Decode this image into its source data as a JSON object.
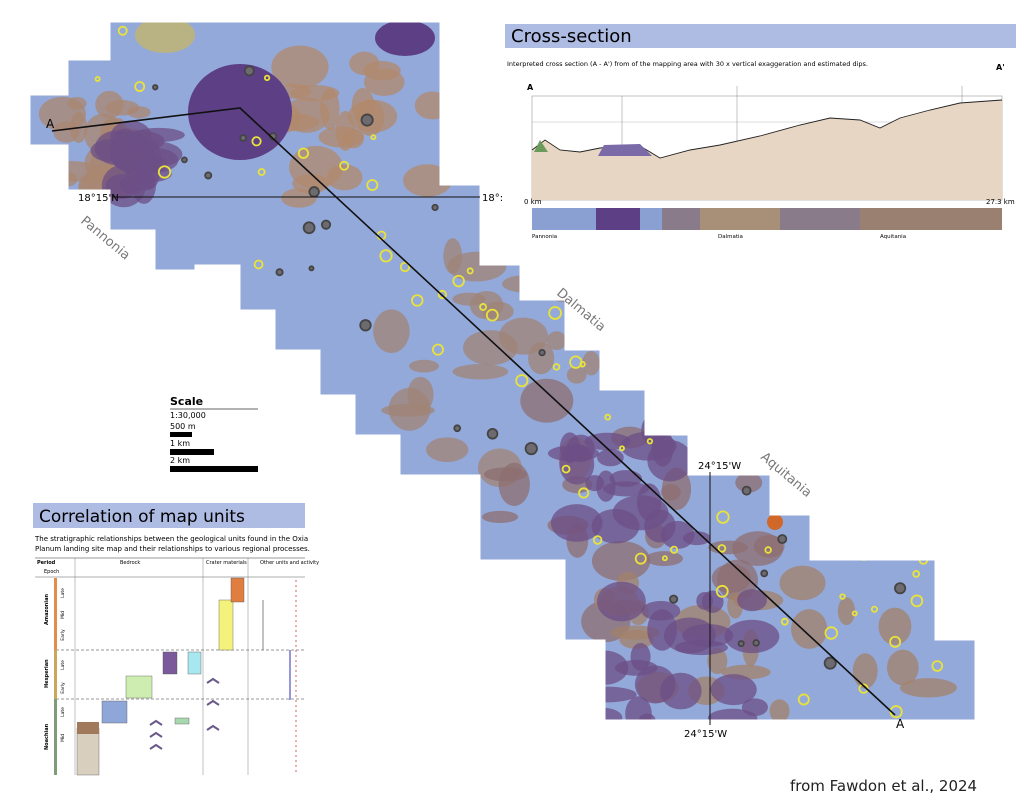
{
  "map": {
    "labels": {
      "a_start": "A",
      "a_end": "A",
      "latitude_left": "18°15'N",
      "latitude_right": "18°:",
      "longitude_top": "24°15'W",
      "longitude_bottom": "24°15'W"
    },
    "regions": [
      "Pannonia",
      "Dalmatia",
      "Aquitania"
    ]
  },
  "scale": {
    "title": "Scale",
    "ratio": "1:30,000",
    "bars": [
      "500 m",
      "1 km",
      "2 km"
    ]
  },
  "cross_section": {
    "title": "Cross-section",
    "description": "Interpreted cross section (A - A') from of the mapping area with 30 x vertical exaggeration and estimated dips.",
    "end_labels": [
      "A",
      "A'"
    ],
    "distance_start": "0 km",
    "distance_end": "27.3 km",
    "regions": [
      "Pannonia",
      "Dalmatia",
      "Aquitania"
    ]
  },
  "correlation": {
    "title": "Correlation of map units",
    "description": [
      "The stratigraphic relationships between the geological units found in the Oxia",
      "Planum landing site map and their relationships to various regional processes."
    ],
    "headers": [
      "Period",
      "Epoch",
      "Bedrock",
      "Crater materials",
      "Other units and activity"
    ],
    "periods": [
      "Amazonian",
      "Hesperian",
      "Noachian"
    ],
    "epochs": [
      "Late",
      "Mid",
      "Early",
      "Late",
      "Early",
      "Late",
      "Mid"
    ]
  },
  "credit": "from Fawdon et al., 2024"
}
